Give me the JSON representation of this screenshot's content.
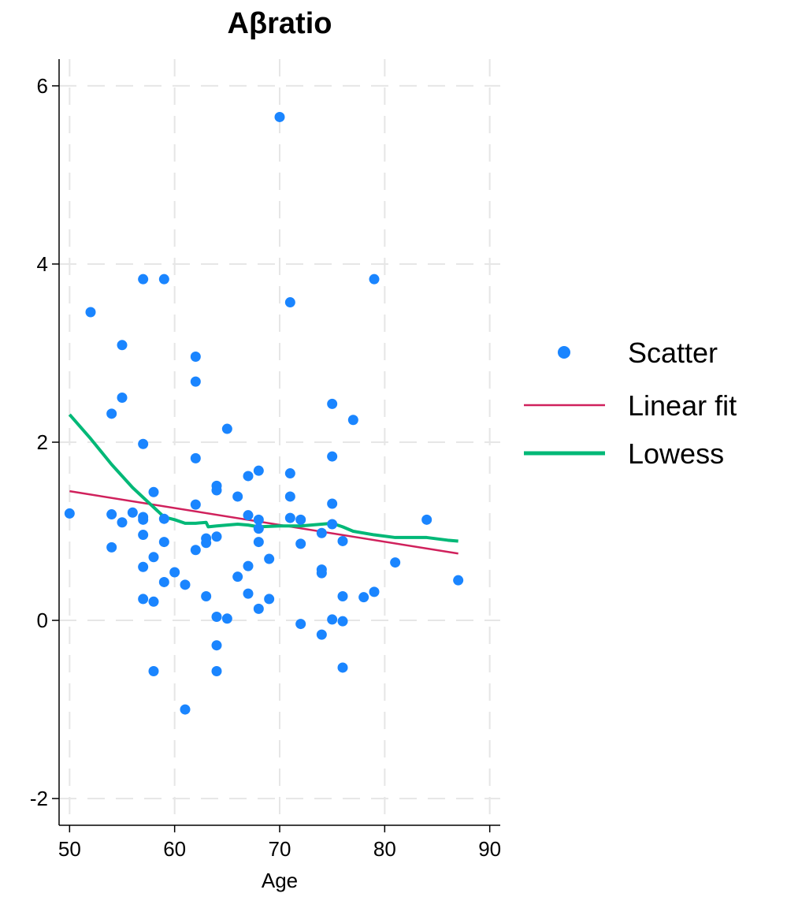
{
  "chart_data": {
    "type": "scatter",
    "title": "Aβratio",
    "xlabel": "Age",
    "ylabel": "",
    "xlim": [
      49,
      91
    ],
    "ylim": [
      -2.3,
      6.3
    ],
    "xticks": [
      50,
      60,
      70,
      80,
      90
    ],
    "yticks": [
      -2,
      0,
      2,
      4,
      6
    ],
    "xtick_labels": [
      "50",
      "60",
      "70",
      "80",
      "90"
    ],
    "ytick_labels": [
      "-2",
      "0",
      "2",
      "4",
      "6"
    ],
    "grid": true,
    "legend_position": "right",
    "colors": {
      "scatter": "#1a85ff",
      "linear_fit": "#d0215c",
      "lowess": "#00b877",
      "grid": "#e6e6e6"
    },
    "series": [
      {
        "name": "Scatter",
        "kind": "scatter",
        "points": [
          [
            50,
            1.2
          ],
          [
            52,
            3.46
          ],
          [
            54,
            2.32
          ],
          [
            54,
            1.19
          ],
          [
            54,
            0.82
          ],
          [
            55,
            3.09
          ],
          [
            55,
            2.5
          ],
          [
            55,
            1.1
          ],
          [
            56,
            1.21
          ],
          [
            57,
            3.83
          ],
          [
            57,
            1.98
          ],
          [
            57,
            1.16
          ],
          [
            57,
            1.13
          ],
          [
            57,
            0.96
          ],
          [
            57,
            0.6
          ],
          [
            57,
            0.24
          ],
          [
            58,
            1.44
          ],
          [
            58,
            0.71
          ],
          [
            58,
            0.21
          ],
          [
            58,
            -0.57
          ],
          [
            59,
            3.83
          ],
          [
            59,
            1.14
          ],
          [
            59,
            0.88
          ],
          [
            59,
            0.43
          ],
          [
            60,
            0.54
          ],
          [
            61,
            0.4
          ],
          [
            61,
            -1.0
          ],
          [
            62,
            2.96
          ],
          [
            62,
            2.68
          ],
          [
            62,
            1.82
          ],
          [
            62,
            1.3
          ],
          [
            62,
            0.79
          ],
          [
            63,
            0.92
          ],
          [
            63,
            0.87
          ],
          [
            63,
            0.27
          ],
          [
            64,
            1.51
          ],
          [
            64,
            1.46
          ],
          [
            64,
            0.94
          ],
          [
            64,
            0.04
          ],
          [
            64,
            -0.28
          ],
          [
            64,
            -0.57
          ],
          [
            65,
            2.15
          ],
          [
            65,
            0.02
          ],
          [
            66,
            1.39
          ],
          [
            66,
            0.49
          ],
          [
            67,
            1.62
          ],
          [
            67,
            1.18
          ],
          [
            67,
            0.61
          ],
          [
            67,
            0.3
          ],
          [
            68,
            1.68
          ],
          [
            68,
            1.13
          ],
          [
            68,
            1.03
          ],
          [
            68,
            0.88
          ],
          [
            68,
            0.13
          ],
          [
            69,
            0.69
          ],
          [
            69,
            0.24
          ],
          [
            70,
            5.65
          ],
          [
            71,
            3.57
          ],
          [
            71,
            1.65
          ],
          [
            71,
            1.39
          ],
          [
            71,
            1.15
          ],
          [
            72,
            1.13
          ],
          [
            72,
            0.86
          ],
          [
            72,
            -0.04
          ],
          [
            74,
            0.98
          ],
          [
            74,
            0.57
          ],
          [
            74,
            0.53
          ],
          [
            74,
            -0.16
          ],
          [
            75,
            2.43
          ],
          [
            75,
            1.84
          ],
          [
            75,
            1.31
          ],
          [
            75,
            1.08
          ],
          [
            75,
            0.01
          ],
          [
            76,
            0.89
          ],
          [
            76,
            0.27
          ],
          [
            76,
            -0.01
          ],
          [
            76,
            -0.53
          ],
          [
            77,
            2.25
          ],
          [
            78,
            0.26
          ],
          [
            79,
            3.83
          ],
          [
            79,
            0.32
          ],
          [
            81,
            0.65
          ],
          [
            84,
            1.13
          ],
          [
            87,
            0.45
          ]
        ]
      },
      {
        "name": "Linear fit",
        "kind": "line",
        "points": [
          [
            50,
            1.45
          ],
          [
            87,
            0.75
          ]
        ]
      },
      {
        "name": "Lowess",
        "kind": "line",
        "points": [
          [
            50,
            2.31
          ],
          [
            52,
            2.04
          ],
          [
            54,
            1.75
          ],
          [
            56,
            1.49
          ],
          [
            58,
            1.27
          ],
          [
            59,
            1.16
          ],
          [
            60,
            1.13
          ],
          [
            61,
            1.09
          ],
          [
            62,
            1.09
          ],
          [
            63,
            1.1
          ],
          [
            63.2,
            1.05
          ],
          [
            64,
            1.06
          ],
          [
            66,
            1.08
          ],
          [
            67,
            1.07
          ],
          [
            68,
            1.05
          ],
          [
            70,
            1.06
          ],
          [
            72,
            1.06
          ],
          [
            74,
            1.08
          ],
          [
            75,
            1.09
          ],
          [
            76,
            1.05
          ],
          [
            77,
            1.0
          ],
          [
            79,
            0.96
          ],
          [
            81,
            0.93
          ],
          [
            84,
            0.93
          ],
          [
            86,
            0.9
          ],
          [
            87,
            0.89
          ]
        ]
      }
    ]
  }
}
